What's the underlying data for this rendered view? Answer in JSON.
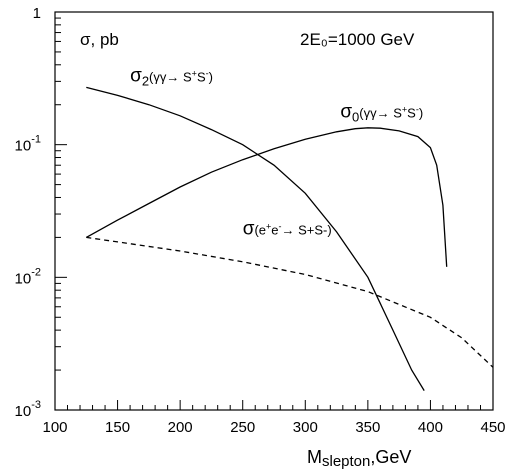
{
  "chart_data": {
    "type": "line",
    "y_scale": "log",
    "xlim": [
      100,
      450
    ],
    "ylim": [
      0.001,
      1
    ],
    "x_ticks": [
      100,
      150,
      200,
      250,
      300,
      350,
      400,
      450
    ],
    "x_tick_labels": [
      "100",
      "150",
      "200",
      "250",
      "300",
      "350",
      "400",
      "450"
    ],
    "y_ticks": [
      0.001,
      0.01,
      0.1,
      1
    ],
    "y_tick_labels": [
      {
        "base": "10",
        "exp": "-3"
      },
      {
        "base": "10",
        "exp": "-2"
      },
      {
        "base": "10",
        "exp": "-1"
      },
      {
        "base": "1",
        "exp": ""
      }
    ],
    "xlabel": {
      "main": "M",
      "sub": "slepton",
      "rest": ",GeV"
    },
    "ylabel_annotation": "σ, pb",
    "energy_annotation": "2E₀=1000 GeV",
    "grid": false,
    "series": [
      {
        "name": "σ₂(γγ → S⁺S⁻)",
        "label": {
          "sym": "σ",
          "sub": "2",
          "proc": "(γγ→ S",
          "s1": "+",
          "mid": "S",
          "s2": "-",
          "close": ")"
        },
        "style": "solid",
        "x": [
          125,
          150,
          175,
          200,
          225,
          250,
          275,
          300,
          325,
          350,
          370,
          385,
          395
        ],
        "y": [
          0.27,
          0.235,
          0.2,
          0.165,
          0.13,
          0.1,
          0.07,
          0.043,
          0.022,
          0.01,
          0.004,
          0.002,
          0.0014
        ]
      },
      {
        "name": "σ₀(γγ → S⁺S⁻)",
        "label": {
          "sym": "σ",
          "sub": "0",
          "proc": "(γγ→ S",
          "s1": "+",
          "mid": "S",
          "s2": "-",
          "close": ")"
        },
        "style": "solid",
        "x": [
          125,
          150,
          175,
          200,
          225,
          250,
          275,
          300,
          325,
          340,
          350,
          360,
          375,
          390,
          400,
          405,
          410,
          413
        ],
        "y": [
          0.02,
          0.027,
          0.036,
          0.048,
          0.062,
          0.077,
          0.093,
          0.11,
          0.125,
          0.132,
          0.134,
          0.133,
          0.127,
          0.115,
          0.095,
          0.07,
          0.035,
          0.012
        ]
      },
      {
        "name": "σ(e⁺e⁻ → S⁺S⁻)",
        "label": {
          "sym": "σ",
          "sub": "",
          "proc": "(e",
          "s1": "+",
          "mid": "e",
          "s2": "-",
          "close": "→ S+S-)"
        },
        "style": "dashed",
        "x": [
          125,
          150,
          200,
          250,
          300,
          350,
          400,
          425,
          450
        ],
        "y": [
          0.02,
          0.0185,
          0.0158,
          0.0131,
          0.0105,
          0.0078,
          0.005,
          0.0035,
          0.0021
        ]
      }
    ]
  }
}
